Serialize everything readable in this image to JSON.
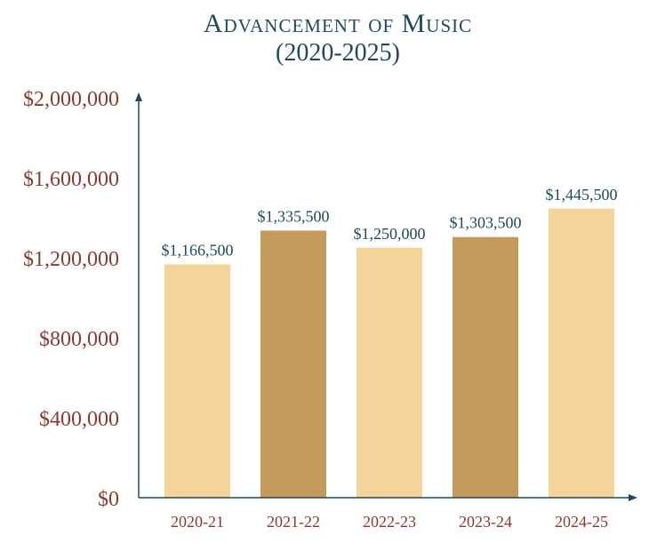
{
  "chart_data": {
    "type": "bar",
    "title_lines": [
      "Advancement of Music",
      "(2020-2025)"
    ],
    "xlabel": "",
    "ylabel": "",
    "categories": [
      "2020-21",
      "2021-22",
      "2022-23",
      "2023-24",
      "2024-25"
    ],
    "values": [
      1166500,
      1335500,
      1250000,
      1303500,
      1445500
    ],
    "value_labels": [
      "$1,166,500",
      "$1,335,500",
      "$1,250,000",
      "$1,303,500",
      "$1,445,500"
    ],
    "ylim": [
      0,
      2000000
    ],
    "y_ticks": [
      0,
      400000,
      800000,
      1200000,
      1600000,
      2000000
    ],
    "y_tick_labels": [
      "$0",
      "$400,000",
      "$800,000",
      "$1,200,000",
      "$1,600,000",
      "$2,000,000"
    ],
    "grid": false,
    "legend": "none",
    "bar_colors": [
      "#f5d49a",
      "#c49a5a",
      "#f5d49a",
      "#c49a5a",
      "#f5d49a"
    ],
    "axis_color": "#1f4a5c",
    "title_color": "#1f4a5c",
    "y_tick_color": "#8b3a2e",
    "x_tick_color": "#8b3a2e",
    "value_label_color": "#1f4a5c"
  }
}
